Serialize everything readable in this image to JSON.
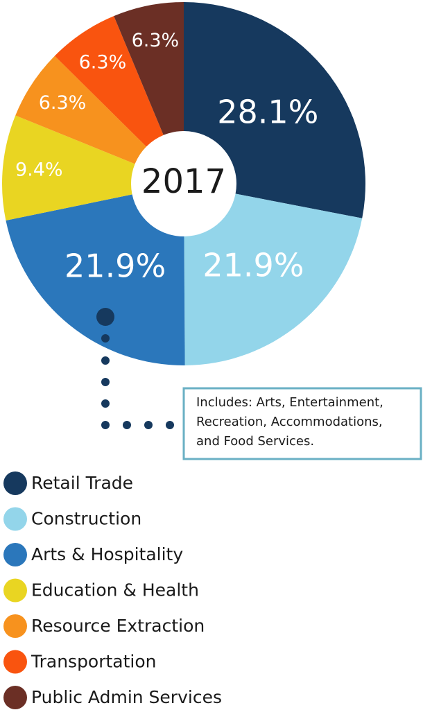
{
  "chart_data": {
    "type": "pie",
    "center_label": "2017",
    "categories": [
      "Retail Trade",
      "Construction",
      "Arts & Hospitality",
      "Education & Health",
      "Resource Extraction",
      "Transportation",
      "Public Admin Services"
    ],
    "values": [
      28.1,
      21.9,
      21.9,
      9.4,
      6.3,
      6.3,
      6.3
    ],
    "value_labels": [
      "28.1%",
      "21.9%",
      "21.9%",
      "9.4%",
      "6.3%",
      "6.3%",
      "6.3%"
    ],
    "colors": [
      "#16395e",
      "#93d5ea",
      "#2b77bb",
      "#e9d522",
      "#f7921e",
      "#f9540f",
      "#6b2f25"
    ],
    "annotation": [
      "Includes: Arts, Entertainment,",
      "Recreation, Accommodations,",
      "and Food Services."
    ]
  }
}
